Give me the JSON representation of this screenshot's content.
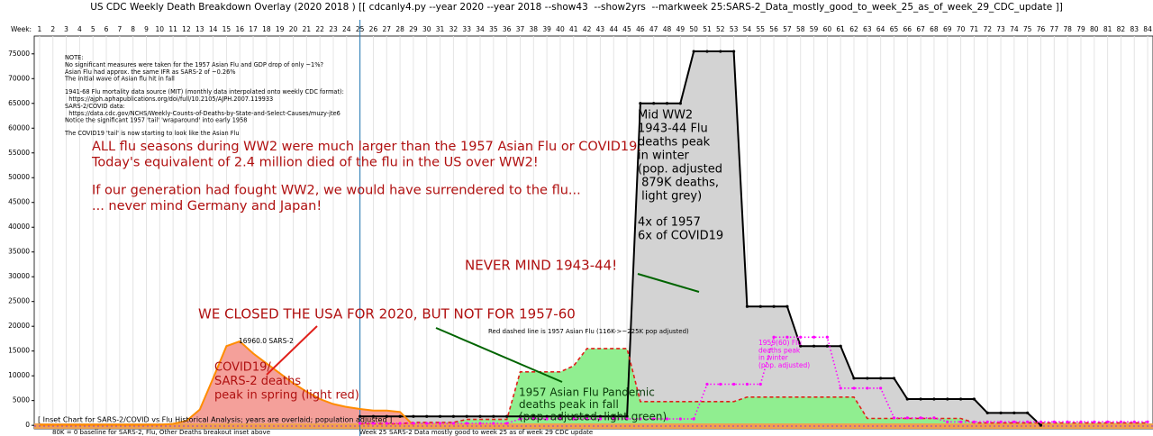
{
  "chart_data": {
    "type": "area",
    "title": "US CDC Weekly Death Breakdown Overlay (2020 2018 ) [[ cdcanly4.py --year 2020 --year 2018 --show43  --show2yrs  --markweek 25:SARS-2_Data_mostly_good_to_week_25_as_of_week_29_CDC_update ]]",
    "x_label": "Week:",
    "xlim": [
      0.6,
      84.4
    ],
    "xticks": [
      1,
      2,
      3,
      4,
      5,
      6,
      7,
      8,
      9,
      10,
      11,
      12,
      13,
      14,
      15,
      16,
      17,
      18,
      19,
      20,
      21,
      22,
      23,
      24,
      25,
      26,
      27,
      28,
      29,
      30,
      31,
      32,
      33,
      34,
      35,
      36,
      37,
      38,
      39,
      40,
      41,
      42,
      43,
      44,
      45,
      46,
      47,
      48,
      49,
      50,
      51,
      52,
      53,
      54,
      55,
      56,
      57,
      58,
      59,
      60,
      61,
      62,
      63,
      64,
      65,
      66,
      67,
      68,
      69,
      70,
      71,
      72,
      73,
      74,
      75,
      76,
      77,
      78,
      79,
      80,
      81,
      82,
      83,
      84
    ],
    "ylim": [
      -700,
      78600
    ],
    "yticks": [
      0,
      5000,
      10000,
      15000,
      20000,
      25000,
      30000,
      35000,
      40000,
      45000,
      50000,
      55000,
      60000,
      65000,
      70000,
      75000
    ],
    "grid": "x",
    "marker_week": 25,
    "series": [
      {
        "color": "#000000",
        "fill": "#d3d3d3",
        "line_style": "solid",
        "markers": true,
        "x": [
          25,
          26,
          27,
          28,
          29,
          30,
          31,
          32,
          33,
          34,
          35,
          36,
          37,
          38,
          39,
          40,
          41,
          42,
          43,
          44,
          45,
          46,
          47,
          48,
          49,
          50,
          51,
          52,
          53,
          54,
          55,
          56,
          57,
          58,
          59,
          60,
          61,
          62,
          63,
          64,
          65,
          66,
          67,
          68,
          69,
          70,
          71,
          72,
          73,
          74,
          75,
          76
        ],
        "values": [
          1800,
          1800,
          1800,
          1800,
          1800,
          1800,
          1800,
          1800,
          1800,
          1800,
          1800,
          1800,
          1800,
          1800,
          1800,
          1800,
          1800,
          1800,
          1800,
          1800,
          1800,
          65000,
          65000,
          65000,
          65000,
          75500,
          75500,
          75500,
          75500,
          24000,
          24000,
          24000,
          24000,
          16000,
          16000,
          16000,
          16000,
          9500,
          9500,
          9500,
          9500,
          5300,
          5300,
          5300,
          5300,
          5300,
          5300,
          2500,
          2500,
          2500,
          2500,
          0
        ]
      },
      {
        "color": "#e0201b",
        "fill": "#90ee90",
        "line_style": "dashed",
        "markers": false,
        "x": [
          25,
          26,
          27,
          28,
          29,
          30,
          31,
          32,
          33,
          34,
          35,
          36,
          37,
          38,
          39,
          40,
          41,
          42,
          43,
          44,
          45,
          46,
          47,
          48,
          49,
          50,
          51,
          52,
          53,
          54,
          55,
          56,
          57,
          58,
          59,
          60,
          61,
          62,
          63,
          64,
          65,
          66,
          67,
          68,
          69,
          70,
          71,
          72,
          73,
          74,
          75,
          76,
          77,
          78,
          79,
          80,
          81,
          82,
          83,
          84
        ],
        "values": [
          300,
          300,
          300,
          300,
          600,
          600,
          600,
          600,
          1200,
          1200,
          1200,
          1200,
          10800,
          10800,
          10800,
          10800,
          12000,
          15500,
          15500,
          15500,
          15500,
          4800,
          4800,
          4800,
          4800,
          4800,
          4800,
          4800,
          4800,
          5700,
          5700,
          5700,
          5700,
          5700,
          5700,
          5700,
          5700,
          5700,
          1400,
          1400,
          1400,
          1400,
          1400,
          1400,
          1400,
          1400,
          500,
          500,
          500,
          500,
          500,
          500,
          500,
          500,
          500,
          500,
          500,
          500,
          500,
          500
        ]
      },
      {
        "color": "#ff8c00",
        "fill": "#f4a09a",
        "line_style": "solid",
        "markers": false,
        "x": [
          1,
          2,
          3,
          4,
          5,
          6,
          7,
          8,
          9,
          10,
          11,
          12,
          13,
          14,
          15,
          16,
          17,
          18,
          19,
          20,
          21,
          22,
          23,
          24,
          25,
          26,
          27,
          28,
          29
        ],
        "values": [
          100,
          100,
          100,
          100,
          100,
          100,
          100,
          100,
          100,
          100,
          300,
          900,
          3200,
          9500,
          16000,
          16960,
          14500,
          12500,
          10500,
          8500,
          6800,
          5300,
          4300,
          3700,
          3300,
          3000,
          3000,
          2700,
          0
        ]
      },
      {
        "color": "#ff00ff",
        "fill": null,
        "line_style": "dotted",
        "markers": true,
        "x": [
          25,
          26,
          27,
          28,
          29,
          30,
          31,
          32,
          33,
          34,
          35,
          36,
          37,
          38,
          39,
          40,
          41,
          42,
          43,
          44,
          45,
          46,
          47,
          48,
          49,
          50,
          51,
          52,
          53,
          54,
          55,
          56,
          57,
          58,
          59,
          60,
          61,
          62,
          63,
          64,
          65,
          66,
          67,
          68,
          69,
          70,
          71,
          72,
          73,
          74,
          75,
          76,
          77,
          78,
          79,
          80,
          81,
          82,
          83,
          84
        ],
        "values": [
          400,
          400,
          400,
          400,
          400,
          400,
          400,
          400,
          400,
          400,
          400,
          400,
          1300,
          1300,
          1300,
          1300,
          1300,
          1300,
          1300,
          1300,
          1300,
          1300,
          1300,
          1300,
          1300,
          1300,
          8300,
          8300,
          8300,
          8300,
          8300,
          17800,
          17800,
          17800,
          17800,
          17800,
          7500,
          7500,
          7500,
          7500,
          1500,
          1500,
          1500,
          1500,
          700,
          700,
          700,
          700,
          700,
          700,
          700,
          700,
          700,
          700,
          700,
          700,
          700,
          700,
          700,
          700
        ]
      }
    ],
    "notes": [
      [
        "NOTE:",
        "No significant measures were taken for the 1957 Asian Flu and GDP drop of only ~1%?",
        "Asian Flu had approx. the same IFR as SARS-2 of ~0.26%",
        "The initial wave of Asian flu hit in fall"
      ],
      [
        "1941-68 Flu mortality data source (MIT) (monthly data interpolated onto weekly CDC format):",
        "  https://ajph.aphapublications.org/doi/full/10.2105/AJPH.2007.119933",
        "SARS-2/COVID data:",
        "  https://data.cdc.gov/NCHS/Weekly-Counts-of-Deaths-by-State-and-Select-Causes/muzy-jte6",
        "Notice the significant 1957 'tail' 'wraparound' into early 1958"
      ],
      [
        "The COVID19 'tail' is now starting to look like the Asian Flu"
      ]
    ],
    "headline": [
      [
        "ALL flu seasons during WW2 were much larger than the 1957 Asian Flu or COVID19.",
        "Today's equivalent of 2.4 million died of the flu in the US over WW2!"
      ],
      [
        "If our generation had fought WW2, we would have surrendered to the flu...",
        "... never mind Germany and Japan!"
      ]
    ],
    "never_mind": "NEVER MIND 1943-44!",
    "closed": "WE CLOSED THE USA FOR 2020, BUT NOT FOR 1957-60",
    "peak_label": "16960.0 SARS-2",
    "covid_label": [
      "COVID19/",
      "SARS-2 deaths",
      "peak in spring (light red)"
    ],
    "red_dashed_note": "Red dashed line is 1957 Asian Flu (116K->~225K pop adjusted)",
    "asian_label": [
      "1957 Asian Flu Pandemic",
      "deaths peak in fall",
      "(pop. adjusted, light green)"
    ],
    "ww2_label": [
      [
        "Mid WW2",
        "1943-44 Flu",
        "deaths peak",
        "in winter",
        "(pop. adjusted",
        " 879K deaths,",
        " light grey)"
      ],
      [
        "4x of 1957",
        "6x of COVID19"
      ]
    ],
    "flu59_label": [
      "1959(60) Flu",
      "deaths peak",
      "in winter",
      "(pop. adjusted)"
    ],
    "inset_label": "[ Inset Chart for SARS-2/COVID vs Flu Historical Analysis; years are overlaid; population adjusted ]",
    "baseline_note": "80K = 0 baseline for SARS-2, Flu, Other Deaths breakout inset above",
    "marker_label": "Week 25",
    "marker_note": "SARS-2 Data mostly good to week 25 as of week 29 CDC update"
  }
}
